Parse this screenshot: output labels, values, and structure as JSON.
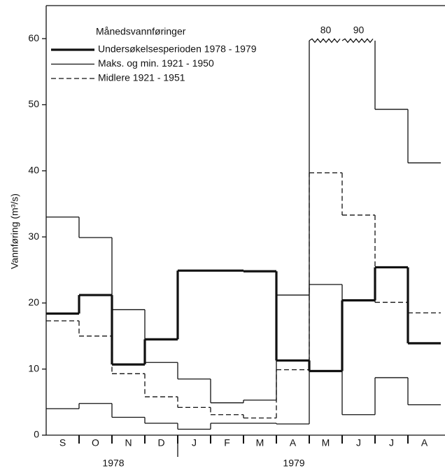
{
  "chart_data": {
    "type": "step",
    "y_label": "Vannføring (m³/s)",
    "legend_title": "Månedsvannføringer",
    "categories": [
      "S",
      "O",
      "N",
      "D",
      "J",
      "F",
      "M",
      "A",
      "M",
      "J",
      "J",
      "A"
    ],
    "year_labels": [
      "1978",
      "1979"
    ],
    "series": [
      {
        "name": "Undersøkelsesperioden 1978 - 1979",
        "color": "#111111",
        "linewidth": 3.2,
        "dashed": false,
        "values": [
          18.4,
          21.2,
          10.7,
          14.5,
          24.9,
          24.9,
          24.8,
          11.3,
          9.7,
          20.4,
          25.4,
          13.9
        ]
      },
      {
        "name": "Maks. og min. 1921 - 1950",
        "color": "#111111",
        "linewidth": 1.3,
        "dashed": false,
        "values": [
          33,
          29.9,
          19,
          11,
          8.5,
          4.9,
          5.3,
          21.2,
          80,
          90,
          49.3,
          41.2
        ],
        "low": [
          4.0,
          4.8,
          2.7,
          1.8,
          0.9,
          1.8,
          1.8,
          1.7,
          22.8,
          3.1,
          8.7,
          4.6
        ]
      },
      {
        "name": "Midlere 1921 - 1951",
        "color": "#111111",
        "linewidth": 1.3,
        "dashed": true,
        "values": [
          17.3,
          15,
          9.3,
          5.8,
          4.2,
          3.1,
          2.6,
          9.9,
          39.7,
          33.3,
          20.1,
          18.5
        ]
      }
    ],
    "ylim": [
      0,
      65
    ],
    "yticks": [
      0,
      10,
      20,
      30,
      40,
      50,
      60
    ],
    "grid": false
  }
}
